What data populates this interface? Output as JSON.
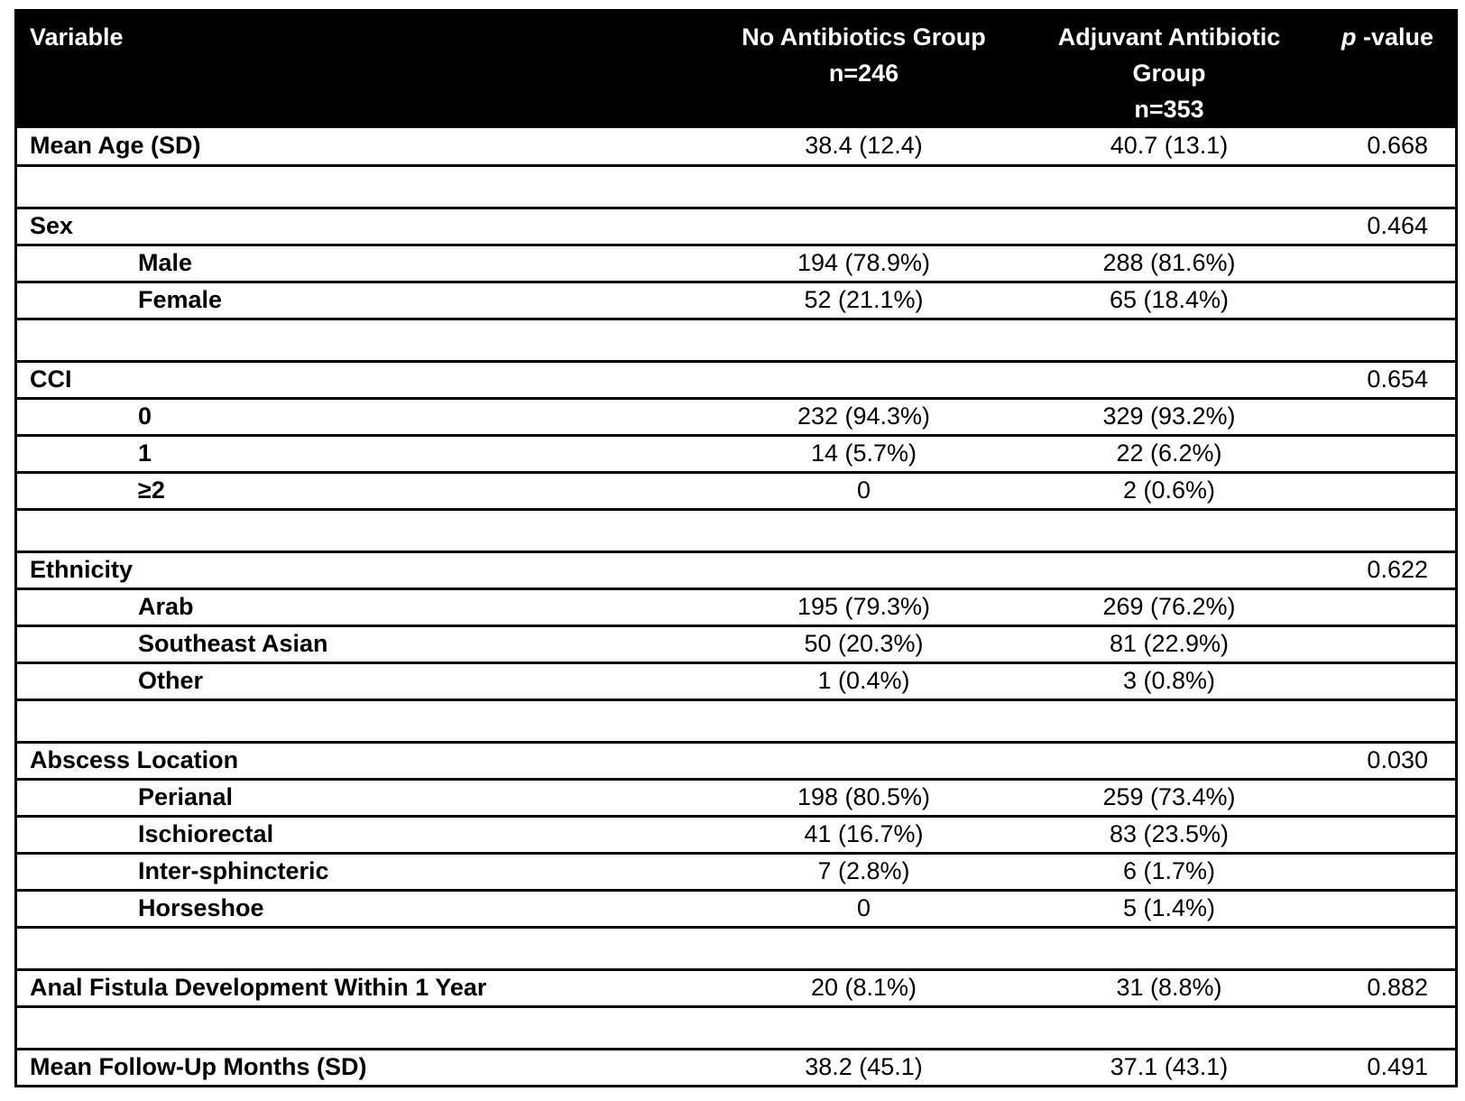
{
  "table": {
    "header": {
      "variable": "Variable",
      "group1": {
        "label": "No Antibiotics Group",
        "n": "n=246"
      },
      "group2": {
        "label": "Adjuvant Antibiotic Group",
        "n": "n=353"
      },
      "p_italic": "p",
      "p_rest": " -value"
    },
    "rows": [
      {
        "type": "main",
        "label": "Mean Age (SD)",
        "g1": "38.4 (12.4)",
        "g2": "40.7 (13.1)",
        "p": "0.668"
      },
      {
        "type": "spacer"
      },
      {
        "type": "main",
        "label": "Sex",
        "g1": "",
        "g2": "",
        "p": "0.464"
      },
      {
        "type": "sub",
        "label": "Male",
        "g1": "194 (78.9%)",
        "g2": "288 (81.6%)",
        "p": ""
      },
      {
        "type": "sub",
        "label": "Female",
        "g1": "52 (21.1%)",
        "g2": "65 (18.4%)",
        "p": ""
      },
      {
        "type": "spacer"
      },
      {
        "type": "main",
        "label": "CCI",
        "g1": "",
        "g2": "",
        "p": "0.654"
      },
      {
        "type": "sub",
        "label": "0",
        "g1": "232 (94.3%)",
        "g2": "329 (93.2%)",
        "p": ""
      },
      {
        "type": "sub",
        "label": "1",
        "g1": "14 (5.7%)",
        "g2": "22 (6.2%)",
        "p": ""
      },
      {
        "type": "sub",
        "label": "≥2",
        "g1": "0",
        "g2": "2 (0.6%)",
        "p": ""
      },
      {
        "type": "spacer"
      },
      {
        "type": "main",
        "label": "Ethnicity",
        "g1": "",
        "g2": "",
        "p": "0.622"
      },
      {
        "type": "sub",
        "label": "Arab",
        "g1": "195 (79.3%)",
        "g2": "269 (76.2%)",
        "p": ""
      },
      {
        "type": "sub",
        "label": "Southeast Asian",
        "g1": "50 (20.3%)",
        "g2": "81 (22.9%)",
        "p": ""
      },
      {
        "type": "sub",
        "label": "Other",
        "g1": "1 (0.4%)",
        "g2": "3 (0.8%)",
        "p": ""
      },
      {
        "type": "spacer"
      },
      {
        "type": "main",
        "label": "Abscess Location",
        "g1": "",
        "g2": "",
        "p": "0.030"
      },
      {
        "type": "sub",
        "label": "Perianal",
        "g1": "198 (80.5%)",
        "g2": "259 (73.4%)",
        "p": ""
      },
      {
        "type": "sub",
        "label": "Ischiorectal",
        "g1": "41 (16.7%)",
        "g2": "83 (23.5%)",
        "p": ""
      },
      {
        "type": "sub",
        "label": "Inter-sphincteric",
        "g1": "7 (2.8%)",
        "g2": "6 (1.7%)",
        "p": ""
      },
      {
        "type": "sub",
        "label": "Horseshoe",
        "g1": "0",
        "g2": "5 (1.4%)",
        "p": ""
      },
      {
        "type": "spacer"
      },
      {
        "type": "main",
        "label": "Anal Fistula Development Within 1 Year",
        "g1": "20 (8.1%)",
        "g2": "31 (8.8%)",
        "p": "0.882"
      },
      {
        "type": "spacer"
      },
      {
        "type": "main",
        "label": "Mean Follow-Up Months (SD)",
        "g1": "38.2 (45.1)",
        "g2": "37.1 (43.1)",
        "p": "0.491"
      }
    ],
    "colors": {
      "header_bg": "#000000",
      "header_text": "#ffffff",
      "body_text": "#000000",
      "rule": "#000000",
      "background": "#ffffff"
    }
  }
}
